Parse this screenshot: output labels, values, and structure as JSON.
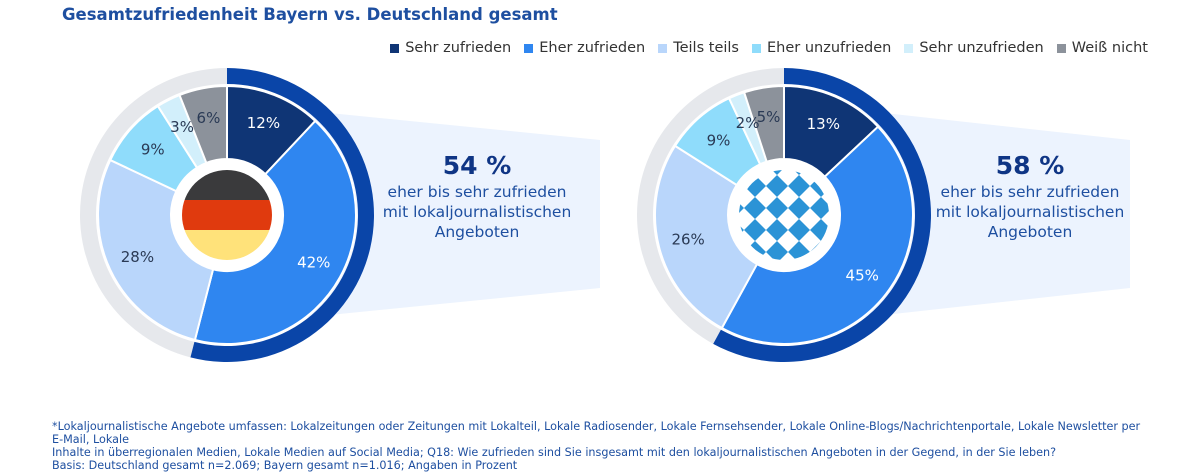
{
  "title": "Gesamtzufriedenheit Bayern vs. Deutschland gesamt",
  "legend": [
    {
      "label": "Sehr zufrieden",
      "color": "#0f3575"
    },
    {
      "label": "Eher zufrieden",
      "color": "#2f86f0"
    },
    {
      "label": "Teils teils",
      "color": "#b9d6fb"
    },
    {
      "label": "Eher unzufrieden",
      "color": "#8fdcfb"
    },
    {
      "label": "Sehr unzufrieden",
      "color": "#d2effb"
    },
    {
      "label": "Weiß nicht",
      "color": "#8c929b"
    }
  ],
  "chart_data": [
    {
      "type": "pie",
      "center_icon": "germany-flag-icon",
      "categories": [
        "Sehr zufrieden",
        "Eher zufrieden",
        "Teils teils",
        "Eher unzufrieden",
        "Sehr unzufrieden",
        "Weiß nicht"
      ],
      "values": [
        12,
        42,
        28,
        9,
        3,
        6
      ],
      "labels": [
        "12%",
        "42%",
        "28%",
        "9%",
        "3%",
        "6%"
      ],
      "highlight": {
        "value": 54,
        "big": "54 %",
        "lines": [
          "eher bis sehr zufrieden",
          "mit lokaljournalistischen",
          "Angeboten"
        ]
      }
    },
    {
      "type": "pie",
      "center_icon": "bavaria-flag-icon",
      "categories": [
        "Sehr zufrieden",
        "Eher zufrieden",
        "Teils teils",
        "Eher unzufrieden",
        "Sehr unzufrieden",
        "Weiß nicht"
      ],
      "values": [
        13,
        45,
        26,
        9,
        2,
        5
      ],
      "labels": [
        "13%",
        "45%",
        "26%",
        "9%",
        "2%",
        "5%"
      ],
      "highlight": {
        "value": 58,
        "big": "58 %",
        "lines": [
          "eher bis sehr zufrieden",
          "mit lokaljournalistischen",
          "Angeboten"
        ]
      }
    }
  ],
  "footnote": [
    "*Lokaljournalistische Angebote umfassen: Lokalzeitungen oder Zeitungen mit Lokalteil, Lokale Radiosender, Lokale Fernsehsender, Lokale Online-Blogs/Nachrichtenportale, Lokale Newsletter per E-Mail, Lokale",
    "Inhalte in überregionalen Medien, Lokale Medien auf Social Media; Q18: Wie zufrieden sind Sie insgesamt mit den lokaljournalistischen Angeboten in der Gegend, in der Sie leben?",
    "Basis: Deutschland gesamt n=2.069; Bayern gesamt n=1.016; Angaben in Prozent"
  ]
}
